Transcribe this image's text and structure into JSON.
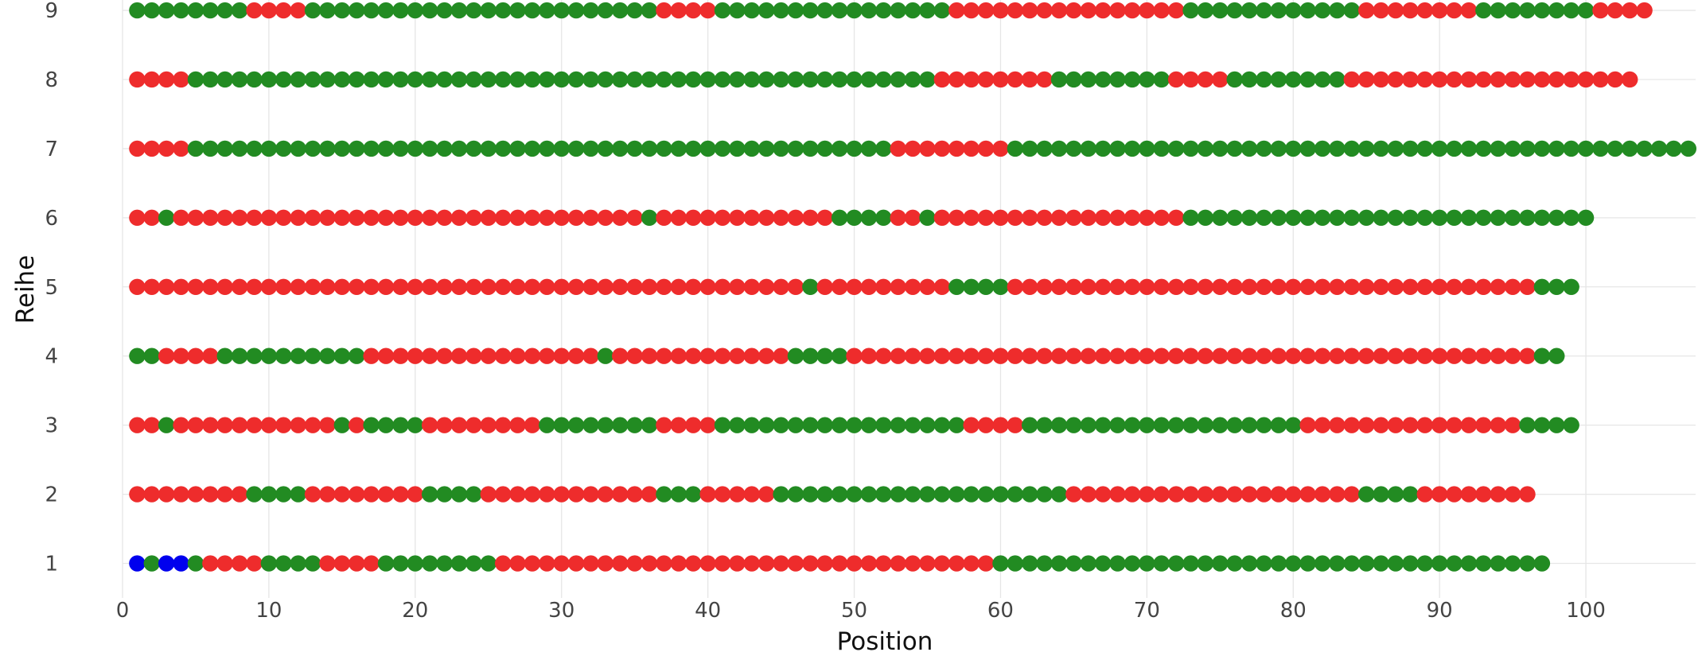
{
  "chart_data": {
    "type": "scatter",
    "xlabel": "Position",
    "ylabel": "Reihe",
    "xlim": [
      0,
      107.5
    ],
    "ylim": [
      0.5,
      9.15
    ],
    "x_ticks": [
      0,
      10,
      20,
      30,
      40,
      50,
      60,
      70,
      80,
      90,
      100
    ],
    "y_ticks": [
      1,
      2,
      3,
      4,
      5,
      6,
      7,
      8,
      9
    ],
    "grid": true,
    "legend": "none",
    "colors": {
      "G": "#228b22",
      "R": "#ee2c2c",
      "B": "#0000ee"
    },
    "color_key": "Each row lists the color of the point at positions 1, 2, 3, ... (G = green, R = red, B = blue)",
    "rows": [
      {
        "row": 1,
        "colors": "BGBBGRRRRGGGGRRRRGGGGGGGGRRRRRRRRRRRRRRRRRRRRRRRRRRRRRRRRRRGGGGGGGGGGGGGGGGGGGGGGGGGGGGGGGGGGGGGG"
      },
      {
        "row": 2,
        "colors": "RRRRRRRRGGGGRRRRRRRRGGGGRRRRRRRRRRRRGGGRRRRRGGGGGGGGGGGGGGGGGGGGRRRRRRRRRRRRRRRRRRRRGGGGRRRRRRRR"
      },
      {
        "row": 3,
        "colors": "RRGRRRRRRRRRRRGRGGGGRRRRRRRRGGGGGGGGRRRRGGGGGGGGGGGGGGGGGRRRRGGGGGGGGGGGGGGGGGGGRRRRRRRRRRRRRRRGGGG"
      },
      {
        "row": 4,
        "colors": "GGRRRRGGGGGGGGGGRRRRRRRRRRRRRRRRGRRRRRRRRRRRRGGGGRRRRRRRRRRRRRRRRRRRRRRRRRRRRRRRRRRRRRRRRRRRRRRRGG"
      },
      {
        "row": 5,
        "colors": "RRRRRRRRRRRRRRRRRRRRRRRRRRRRRRRRRRRRRRRRRRRRRRGRRRRRRRRRGGGGRRRRRRRRRRRRRRRRRRRRRRRRRRRRRRRRRRRRGGG"
      },
      {
        "row": 6,
        "colors": "RRGRRRRRRRRRRRRRRRRRRRRRRRRRRRRRRRRGRRRRRRRRRRRRGGGGRRGRRRRRRRRRRRRRRRRRGGGGGGGGGGGGGGGGGGGGGGGGGGGG"
      },
      {
        "row": 7,
        "colors": "RRRRGGGGGGGGGGGGGGGGGGGGGGGGGGGGGGGGGGGGGGGGGGGGGGGGRRRRRRRRGGGGGGGGGGGGGGGGGGGGGGGGGGGGGGGGGGGGGGGGGGGGGGG"
      },
      {
        "row": 8,
        "colors": "RRRRGGGGGGGGGGGGGGGGGGGGGGGGGGGGGGGGGGGGGGGGGGGGGGGGGGGRRRRRRRRGGGGGGGGRRRRGGGGGGGGRRRRRRRRRRRRRRRRRRRR"
      },
      {
        "row": 9,
        "colors": "GGGGGGGGRRRRGGGGGGGGGGGGGGGGGGGGGGGGRRRRGGGGGGGGGGGGGGGGRRRRRRRRRRRRRRRRGGGGGGGGGGGGRRRRRRRRGGGGGGGGRRRR"
      }
    ]
  }
}
